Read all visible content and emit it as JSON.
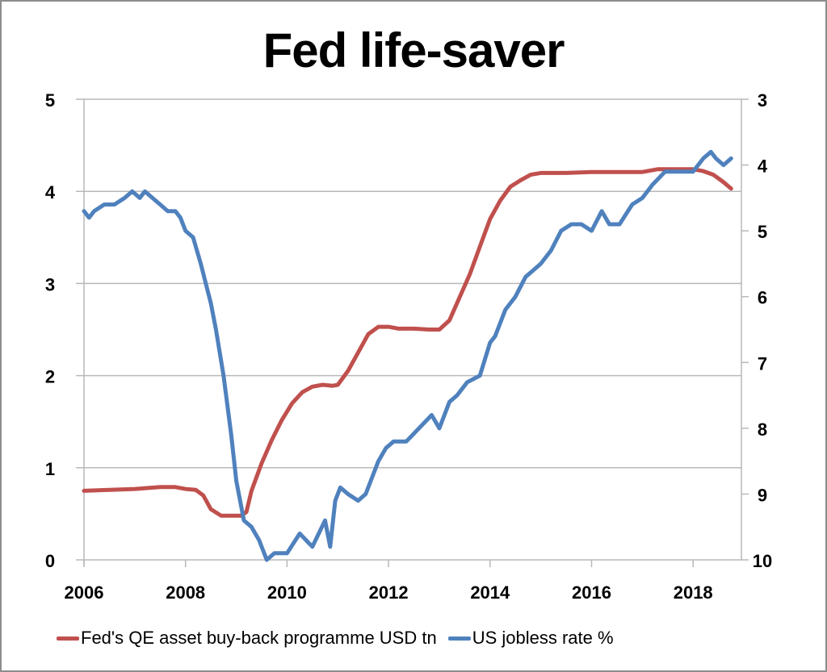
{
  "title": "Fed life-saver",
  "legend": [
    {
      "label": "Fed's QE asset buy-back programme USD tn",
      "color": "#c0504d"
    },
    {
      "label": "US jobless rate %",
      "color": "#4f81bd"
    }
  ],
  "axes": {
    "x_ticks": [
      "2006",
      "2008",
      "2010",
      "2012",
      "2014",
      "2016",
      "2018"
    ],
    "left_ticks": [
      "0",
      "1",
      "2",
      "3",
      "4",
      "5"
    ],
    "right_ticks": [
      "3",
      "4",
      "5",
      "6",
      "7",
      "8",
      "9",
      "10"
    ]
  },
  "chart_data": {
    "type": "line",
    "title": "Fed life-saver",
    "xlabel": "",
    "ylabel": "Fed's QE asset buy-back programme USD tn",
    "y2label": "US jobless rate % (inverted)",
    "xlim": [
      2006,
      2018.95
    ],
    "ylim": [
      0,
      5
    ],
    "y2lim": [
      10,
      3
    ],
    "y2_inverted": true,
    "grid": true,
    "legend_position": "bottom",
    "series": [
      {
        "name": "Fed's QE asset buy-back programme USD tn",
        "axis": "left",
        "color": "#c0504d",
        "x": [
          2006.0,
          2006.5,
          2007.0,
          2007.5,
          2007.8,
          2008.0,
          2008.2,
          2008.35,
          2008.5,
          2008.7,
          2009.0,
          2009.1,
          2009.2,
          2009.3,
          2009.5,
          2009.7,
          2009.9,
          2010.1,
          2010.3,
          2010.5,
          2010.7,
          2010.9,
          2011.0,
          2011.2,
          2011.4,
          2011.6,
          2011.8,
          2012.0,
          2012.2,
          2012.5,
          2012.8,
          2013.0,
          2013.2,
          2013.4,
          2013.6,
          2013.8,
          2014.0,
          2014.2,
          2014.4,
          2014.6,
          2014.8,
          2015.0,
          2015.5,
          2016.0,
          2016.5,
          2017.0,
          2017.3,
          2017.6,
          2018.0,
          2018.2,
          2018.4,
          2018.6,
          2018.75
        ],
        "values": [
          0.75,
          0.76,
          0.77,
          0.79,
          0.79,
          0.77,
          0.76,
          0.7,
          0.55,
          0.48,
          0.48,
          0.48,
          0.52,
          0.75,
          1.05,
          1.3,
          1.52,
          1.7,
          1.82,
          1.88,
          1.9,
          1.89,
          1.9,
          2.05,
          2.25,
          2.45,
          2.53,
          2.53,
          2.51,
          2.51,
          2.5,
          2.5,
          2.6,
          2.85,
          3.1,
          3.4,
          3.7,
          3.9,
          4.05,
          4.12,
          4.18,
          4.2,
          4.2,
          4.21,
          4.21,
          4.21,
          4.24,
          4.24,
          4.24,
          4.22,
          4.18,
          4.1,
          4.03
        ]
      },
      {
        "name": "US jobless rate %",
        "axis": "right",
        "color": "#4f81bd",
        "x": [
          2006.0,
          2006.1,
          2006.2,
          2006.4,
          2006.6,
          2006.8,
          2006.95,
          2007.1,
          2007.2,
          2007.35,
          2007.5,
          2007.65,
          2007.8,
          2007.9,
          2008.0,
          2008.15,
          2008.3,
          2008.4,
          2008.5,
          2008.6,
          2008.75,
          2008.9,
          2009.0,
          2009.15,
          2009.3,
          2009.45,
          2009.6,
          2009.75,
          2009.85,
          2010.0,
          2010.25,
          2010.5,
          2010.75,
          2010.85,
          2010.95,
          2011.05,
          2011.2,
          2011.4,
          2011.55,
          2011.8,
          2011.95,
          2012.1,
          2012.35,
          2012.6,
          2012.85,
          2013.0,
          2013.2,
          2013.35,
          2013.55,
          2013.8,
          2014.0,
          2014.1,
          2014.3,
          2014.5,
          2014.7,
          2014.85,
          2015.0,
          2015.2,
          2015.4,
          2015.6,
          2015.8,
          2016.0,
          2016.2,
          2016.35,
          2016.55,
          2016.8,
          2017.0,
          2017.2,
          2017.45,
          2017.6,
          2017.8,
          2018.0,
          2018.2,
          2018.35,
          2018.45,
          2018.6,
          2018.75
        ],
        "values": [
          4.7,
          4.8,
          4.7,
          4.6,
          4.6,
          4.5,
          4.4,
          4.5,
          4.4,
          4.5,
          4.6,
          4.7,
          4.7,
          4.8,
          5.0,
          5.1,
          5.5,
          5.8,
          6.1,
          6.5,
          7.2,
          8.1,
          8.8,
          9.4,
          9.5,
          9.7,
          10.0,
          9.9,
          9.9,
          9.9,
          9.6,
          9.8,
          9.4,
          9.8,
          9.1,
          8.9,
          9.0,
          9.1,
          9.0,
          8.5,
          8.3,
          8.2,
          8.2,
          8.0,
          7.8,
          8.0,
          7.6,
          7.5,
          7.3,
          7.2,
          6.7,
          6.6,
          6.2,
          6.0,
          5.7,
          5.6,
          5.5,
          5.3,
          5.0,
          4.9,
          4.9,
          5.0,
          4.7,
          4.9,
          4.9,
          4.6,
          4.5,
          4.3,
          4.1,
          4.1,
          4.1,
          4.1,
          3.9,
          3.8,
          3.9,
          4.0,
          3.9
        ]
      }
    ]
  }
}
